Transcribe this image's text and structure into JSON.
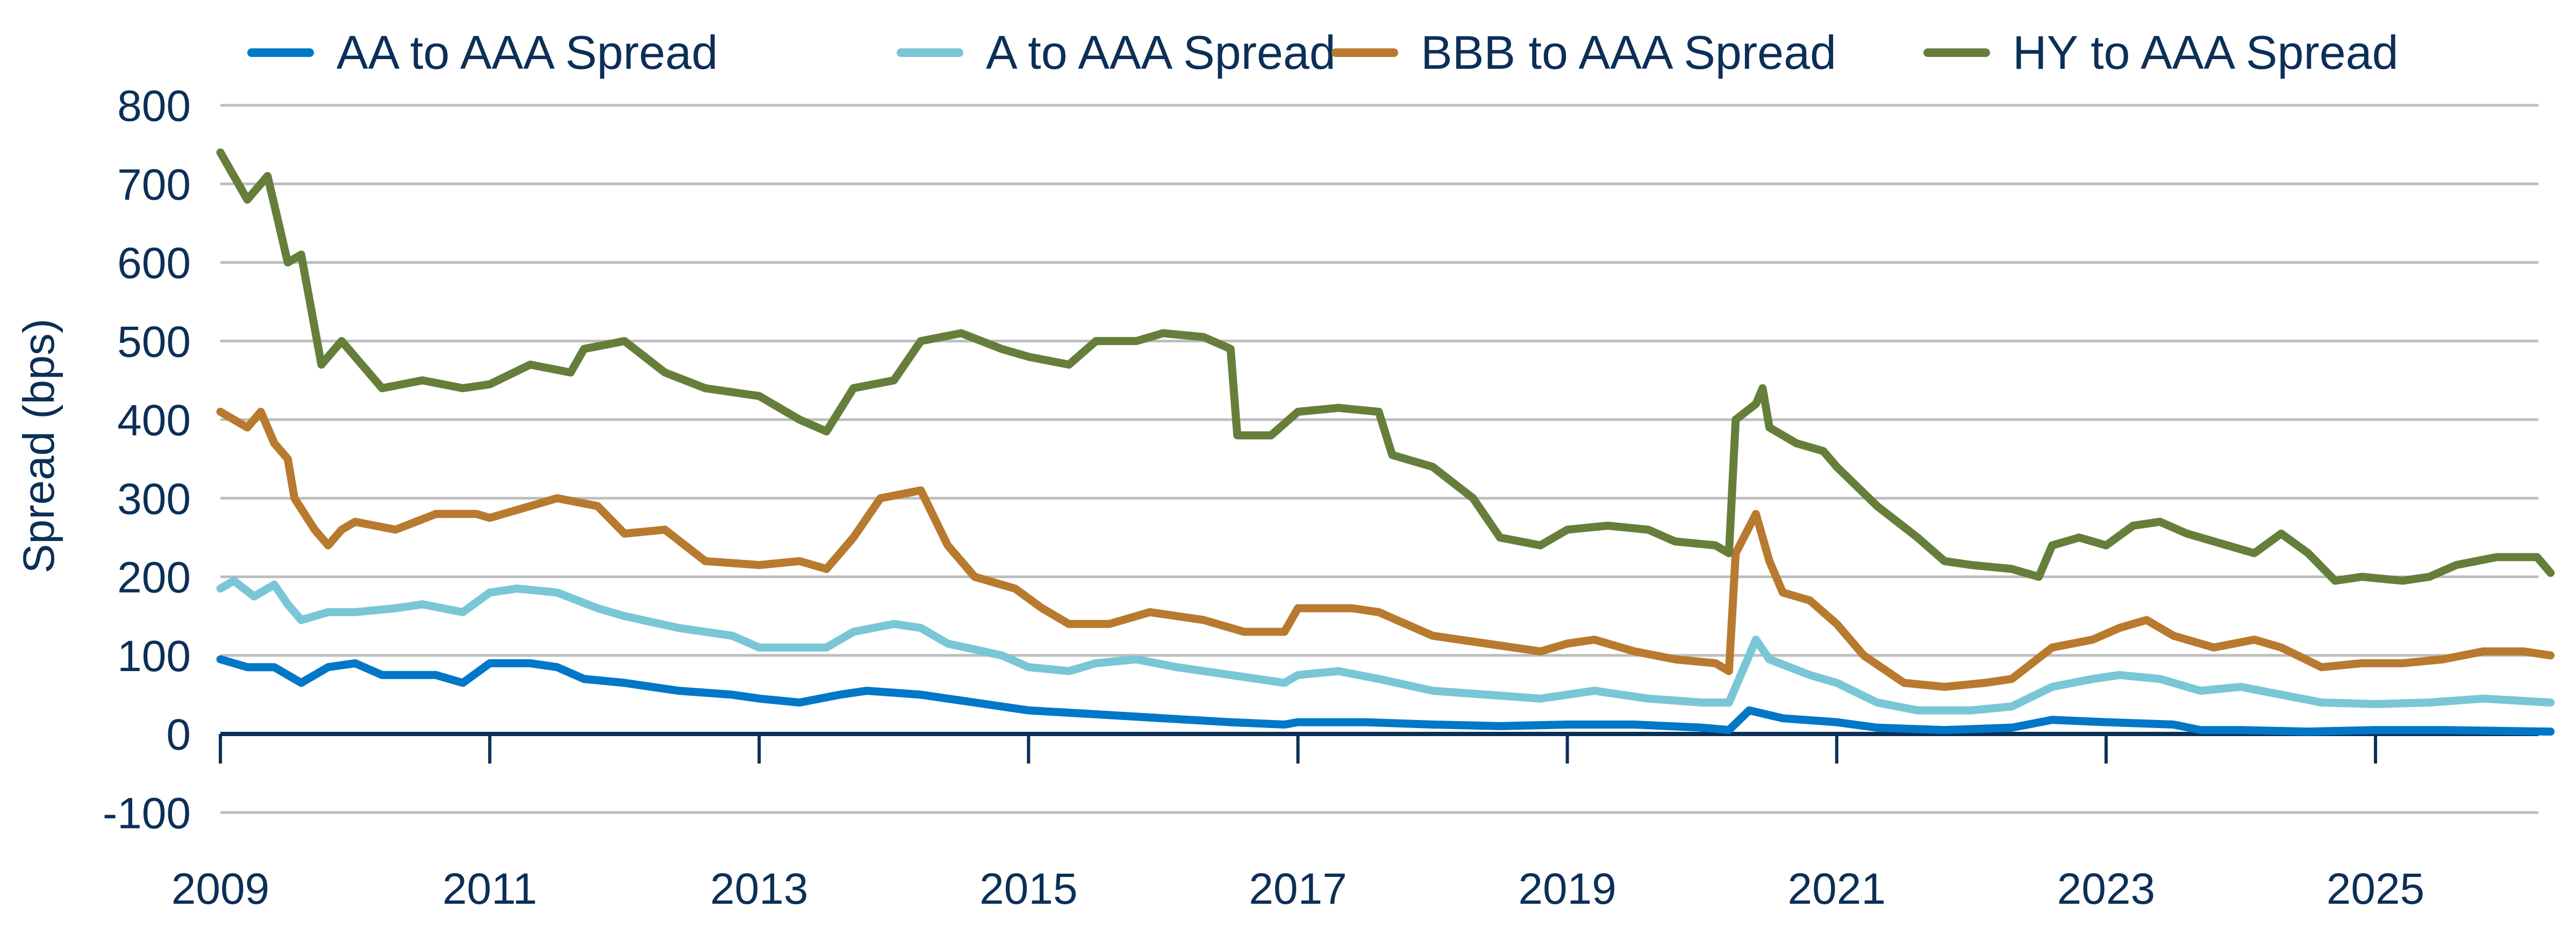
{
  "chart_data": {
    "type": "line",
    "title": "",
    "xlabel": "",
    "ylabel": "Spread (bps)",
    "ylim": [
      -100,
      800
    ],
    "xlim": [
      2009,
      2026.3
    ],
    "yticks": [
      "800",
      "700",
      "600",
      "500",
      "400",
      "300",
      "200",
      "100",
      "0",
      "-100"
    ],
    "xticks": [
      "2009",
      "2011",
      "2013",
      "2015",
      "2017",
      "2019",
      "2021",
      "2023",
      "2025"
    ],
    "grid": true,
    "legend_position": "top",
    "series": [
      {
        "name": "AA to AAA Spread",
        "color": "#0177c8",
        "points": [
          [
            2009.0,
            95
          ],
          [
            2009.2,
            85
          ],
          [
            2009.4,
            85
          ],
          [
            2009.6,
            65
          ],
          [
            2009.8,
            85
          ],
          [
            2010.0,
            90
          ],
          [
            2010.2,
            75
          ],
          [
            2010.6,
            75
          ],
          [
            2010.8,
            65
          ],
          [
            2011.0,
            90
          ],
          [
            2011.3,
            90
          ],
          [
            2011.5,
            85
          ],
          [
            2011.7,
            70
          ],
          [
            2012.0,
            65
          ],
          [
            2012.4,
            55
          ],
          [
            2012.8,
            50
          ],
          [
            2013.0,
            45
          ],
          [
            2013.3,
            40
          ],
          [
            2013.6,
            50
          ],
          [
            2013.8,
            55
          ],
          [
            2014.2,
            50
          ],
          [
            2014.6,
            40
          ],
          [
            2015.0,
            30
          ],
          [
            2015.5,
            25
          ],
          [
            2016.0,
            20
          ],
          [
            2016.5,
            15
          ],
          [
            2016.9,
            12
          ],
          [
            2017.0,
            15
          ],
          [
            2017.5,
            15
          ],
          [
            2018.0,
            12
          ],
          [
            2018.5,
            10
          ],
          [
            2019.0,
            12
          ],
          [
            2019.5,
            12
          ],
          [
            2020.0,
            8
          ],
          [
            2020.2,
            5
          ],
          [
            2020.35,
            30
          ],
          [
            2020.6,
            20
          ],
          [
            2021.0,
            15
          ],
          [
            2021.3,
            8
          ],
          [
            2021.8,
            5
          ],
          [
            2022.3,
            8
          ],
          [
            2022.6,
            18
          ],
          [
            2023.0,
            15
          ],
          [
            2023.5,
            12
          ],
          [
            2023.7,
            5
          ],
          [
            2024.0,
            5
          ],
          [
            2024.5,
            3
          ],
          [
            2025.0,
            5
          ],
          [
            2025.5,
            5
          ],
          [
            2026.3,
            3
          ]
        ]
      },
      {
        "name": "A to AAA Spread",
        "color": "#79c6d6",
        "points": [
          [
            2009.0,
            185
          ],
          [
            2009.1,
            195
          ],
          [
            2009.25,
            175
          ],
          [
            2009.4,
            190
          ],
          [
            2009.5,
            165
          ],
          [
            2009.6,
            145
          ],
          [
            2009.8,
            155
          ],
          [
            2010.0,
            155
          ],
          [
            2010.3,
            160
          ],
          [
            2010.5,
            165
          ],
          [
            2010.8,
            155
          ],
          [
            2011.0,
            180
          ],
          [
            2011.2,
            185
          ],
          [
            2011.5,
            180
          ],
          [
            2011.8,
            160
          ],
          [
            2012.0,
            150
          ],
          [
            2012.4,
            135
          ],
          [
            2012.8,
            125
          ],
          [
            2013.0,
            110
          ],
          [
            2013.3,
            110
          ],
          [
            2013.5,
            110
          ],
          [
            2013.7,
            130
          ],
          [
            2014.0,
            140
          ],
          [
            2014.2,
            135
          ],
          [
            2014.4,
            115
          ],
          [
            2014.8,
            100
          ],
          [
            2015.0,
            85
          ],
          [
            2015.3,
            80
          ],
          [
            2015.5,
            90
          ],
          [
            2015.8,
            95
          ],
          [
            2016.1,
            85
          ],
          [
            2016.5,
            75
          ],
          [
            2016.9,
            65
          ],
          [
            2017.0,
            75
          ],
          [
            2017.3,
            80
          ],
          [
            2017.6,
            70
          ],
          [
            2018.0,
            55
          ],
          [
            2018.4,
            50
          ],
          [
            2018.8,
            45
          ],
          [
            2019.0,
            50
          ],
          [
            2019.2,
            55
          ],
          [
            2019.6,
            45
          ],
          [
            2020.0,
            40
          ],
          [
            2020.2,
            40
          ],
          [
            2020.3,
            80
          ],
          [
            2020.4,
            120
          ],
          [
            2020.5,
            95
          ],
          [
            2020.8,
            75
          ],
          [
            2021.0,
            65
          ],
          [
            2021.3,
            40
          ],
          [
            2021.6,
            30
          ],
          [
            2022.0,
            30
          ],
          [
            2022.3,
            35
          ],
          [
            2022.6,
            60
          ],
          [
            2022.9,
            70
          ],
          [
            2023.1,
            75
          ],
          [
            2023.4,
            70
          ],
          [
            2023.7,
            55
          ],
          [
            2024.0,
            60
          ],
          [
            2024.3,
            50
          ],
          [
            2024.6,
            40
          ],
          [
            2025.0,
            38
          ],
          [
            2025.4,
            40
          ],
          [
            2025.8,
            45
          ],
          [
            2026.3,
            40
          ]
        ]
      },
      {
        "name": "BBB to AAA Spread",
        "color": "#b87a2f",
        "points": [
          [
            2009.0,
            410
          ],
          [
            2009.2,
            390
          ],
          [
            2009.3,
            410
          ],
          [
            2009.4,
            370
          ],
          [
            2009.5,
            350
          ],
          [
            2009.55,
            300
          ],
          [
            2009.7,
            260
          ],
          [
            2009.8,
            240
          ],
          [
            2009.9,
            260
          ],
          [
            2010.0,
            270
          ],
          [
            2010.3,
            260
          ],
          [
            2010.6,
            280
          ],
          [
            2010.9,
            280
          ],
          [
            2011.0,
            275
          ],
          [
            2011.3,
            290
          ],
          [
            2011.5,
            300
          ],
          [
            2011.8,
            290
          ],
          [
            2012.0,
            255
          ],
          [
            2012.3,
            260
          ],
          [
            2012.6,
            220
          ],
          [
            2013.0,
            215
          ],
          [
            2013.3,
            220
          ],
          [
            2013.5,
            210
          ],
          [
            2013.7,
            250
          ],
          [
            2013.9,
            300
          ],
          [
            2014.2,
            310
          ],
          [
            2014.4,
            240
          ],
          [
            2014.6,
            200
          ],
          [
            2014.9,
            185
          ],
          [
            2015.1,
            160
          ],
          [
            2015.3,
            140
          ],
          [
            2015.6,
            140
          ],
          [
            2015.9,
            155
          ],
          [
            2016.3,
            145
          ],
          [
            2016.6,
            130
          ],
          [
            2016.9,
            130
          ],
          [
            2017.0,
            160
          ],
          [
            2017.4,
            160
          ],
          [
            2017.6,
            155
          ],
          [
            2017.8,
            140
          ],
          [
            2018.0,
            125
          ],
          [
            2018.4,
            115
          ],
          [
            2018.8,
            105
          ],
          [
            2019.0,
            115
          ],
          [
            2019.2,
            120
          ],
          [
            2019.5,
            105
          ],
          [
            2019.8,
            95
          ],
          [
            2020.1,
            90
          ],
          [
            2020.2,
            80
          ],
          [
            2020.25,
            230
          ],
          [
            2020.4,
            280
          ],
          [
            2020.5,
            220
          ],
          [
            2020.6,
            180
          ],
          [
            2020.8,
            170
          ],
          [
            2021.0,
            140
          ],
          [
            2021.2,
            100
          ],
          [
            2021.5,
            65
          ],
          [
            2021.8,
            60
          ],
          [
            2022.1,
            65
          ],
          [
            2022.3,
            70
          ],
          [
            2022.6,
            110
          ],
          [
            2022.9,
            120
          ],
          [
            2023.1,
            135
          ],
          [
            2023.3,
            145
          ],
          [
            2023.5,
            125
          ],
          [
            2023.8,
            110
          ],
          [
            2024.1,
            120
          ],
          [
            2024.3,
            110
          ],
          [
            2024.6,
            85
          ],
          [
            2024.9,
            90
          ],
          [
            2025.2,
            90
          ],
          [
            2025.5,
            95
          ],
          [
            2025.8,
            105
          ],
          [
            2026.1,
            105
          ],
          [
            2026.3,
            100
          ]
        ]
      },
      {
        "name": "HY to AAA Spread",
        "color": "#657f3b",
        "points": [
          [
            2009.0,
            740
          ],
          [
            2009.2,
            680
          ],
          [
            2009.35,
            710
          ],
          [
            2009.5,
            600
          ],
          [
            2009.6,
            610
          ],
          [
            2009.75,
            470
          ],
          [
            2009.9,
            500
          ],
          [
            2010.0,
            480
          ],
          [
            2010.2,
            440
          ],
          [
            2010.5,
            450
          ],
          [
            2010.8,
            440
          ],
          [
            2011.0,
            445
          ],
          [
            2011.3,
            470
          ],
          [
            2011.6,
            460
          ],
          [
            2011.7,
            490
          ],
          [
            2012.0,
            500
          ],
          [
            2012.3,
            460
          ],
          [
            2012.6,
            440
          ],
          [
            2013.0,
            430
          ],
          [
            2013.3,
            400
          ],
          [
            2013.5,
            385
          ],
          [
            2013.7,
            440
          ],
          [
            2014.0,
            450
          ],
          [
            2014.2,
            500
          ],
          [
            2014.5,
            510
          ],
          [
            2014.8,
            490
          ],
          [
            2015.0,
            480
          ],
          [
            2015.3,
            470
          ],
          [
            2015.5,
            500
          ],
          [
            2015.8,
            500
          ],
          [
            2016.0,
            510
          ],
          [
            2016.3,
            505
          ],
          [
            2016.5,
            490
          ],
          [
            2016.55,
            380
          ],
          [
            2016.8,
            380
          ],
          [
            2017.0,
            410
          ],
          [
            2017.3,
            415
          ],
          [
            2017.6,
            410
          ],
          [
            2017.7,
            355
          ],
          [
            2018.0,
            340
          ],
          [
            2018.3,
            300
          ],
          [
            2018.5,
            250
          ],
          [
            2018.8,
            240
          ],
          [
            2019.0,
            260
          ],
          [
            2019.3,
            265
          ],
          [
            2019.6,
            260
          ],
          [
            2019.8,
            245
          ],
          [
            2020.1,
            240
          ],
          [
            2020.2,
            230
          ],
          [
            2020.25,
            400
          ],
          [
            2020.4,
            420
          ],
          [
            2020.45,
            440
          ],
          [
            2020.5,
            390
          ],
          [
            2020.7,
            370
          ],
          [
            2020.9,
            360
          ],
          [
            2021.0,
            340
          ],
          [
            2021.3,
            290
          ],
          [
            2021.6,
            250
          ],
          [
            2021.8,
            220
          ],
          [
            2022.0,
            215
          ],
          [
            2022.3,
            210
          ],
          [
            2022.5,
            200
          ],
          [
            2022.6,
            240
          ],
          [
            2022.8,
            250
          ],
          [
            2023.0,
            240
          ],
          [
            2023.2,
            265
          ],
          [
            2023.4,
            270
          ],
          [
            2023.6,
            255
          ],
          [
            2023.9,
            240
          ],
          [
            2024.1,
            230
          ],
          [
            2024.3,
            255
          ],
          [
            2024.5,
            230
          ],
          [
            2024.7,
            195
          ],
          [
            2024.9,
            200
          ],
          [
            2025.2,
            195
          ],
          [
            2025.4,
            200
          ],
          [
            2025.6,
            215
          ],
          [
            2025.9,
            225
          ],
          [
            2026.2,
            225
          ],
          [
            2026.3,
            205
          ]
        ]
      }
    ]
  }
}
